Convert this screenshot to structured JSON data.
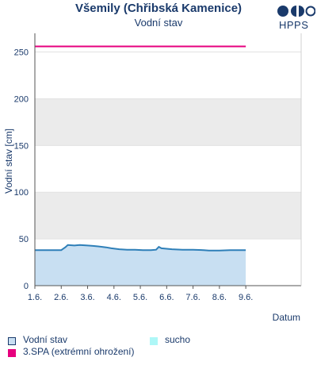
{
  "chart_data": {
    "type": "area",
    "title": "Všemily (Chřibská Kamenice)",
    "subtitle": "Vodní stav",
    "xlabel": "Datum",
    "ylabel": "Vodní stav [cm]",
    "ylim": [
      0,
      270
    ],
    "yticks": [
      0,
      50,
      100,
      150,
      200,
      250
    ],
    "xlim": [
      0,
      101
    ],
    "xticks": [
      {
        "day": 0,
        "label": "1.6."
      },
      {
        "day": 10,
        "label": "2.6."
      },
      {
        "day": 20,
        "label": "3.6."
      },
      {
        "day": 30,
        "label": "4.6."
      },
      {
        "day": 40,
        "label": "5.6."
      },
      {
        "day": 50,
        "label": "6.6."
      },
      {
        "day": 60,
        "label": "7.6."
      },
      {
        "day": 70,
        "label": "8.6."
      },
      {
        "day": 80,
        "label": "9.6."
      }
    ],
    "band_fill": "#ebebeb",
    "series": [
      {
        "name": "Vodní stav",
        "color": "#2e7fb8",
        "fill": "#c8dff2",
        "x": [
          0,
          10,
          10.5,
          11.5,
          12.5,
          15,
          17,
          20,
          22,
          24,
          27,
          29,
          32,
          35,
          38,
          41,
          44,
          46,
          47,
          48,
          52,
          56,
          60,
          64,
          66,
          68,
          70,
          74,
          78,
          80
        ],
        "y": [
          38,
          38,
          39,
          41,
          43.5,
          43,
          43.5,
          43,
          42.5,
          42,
          41,
          40,
          39,
          38.5,
          38.5,
          38,
          38,
          38.5,
          41.5,
          40,
          39,
          38.5,
          38.5,
          38,
          37.5,
          37.5,
          37.5,
          38,
          38,
          38
        ]
      },
      {
        "name": "3.SPA (extrémní ohrožení)",
        "color": "#e6007e",
        "x": [
          0,
          80
        ],
        "y": [
          256,
          256
        ]
      }
    ],
    "legend": [
      {
        "label": "Vodní stav",
        "color": "#c8dff2",
        "border": "#1a3a6b"
      },
      {
        "label": "sucho",
        "color": "#aef7f7",
        "border": "#aef7f7"
      },
      {
        "label": "3.SPA (extrémní ohrožení)",
        "color": "#e6007e",
        "border": "#e6007e"
      }
    ]
  },
  "header": {
    "title": "Všemily (Chřibská Kamenice)",
    "subtitle": "Vodní stav",
    "logo_text": "HPPS"
  },
  "colors": {
    "text": "#1a3a6b",
    "axis": "#555555"
  }
}
